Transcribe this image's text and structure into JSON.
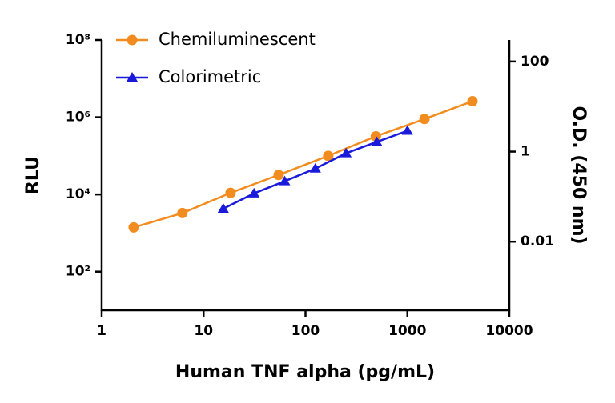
{
  "chart_data": {
    "type": "line",
    "x_label": "Human TNF alpha (pg/mL)",
    "y_label": "RLU",
    "y2_label": "O.D. (450 nm)",
    "xscale": "log",
    "yscale": "log",
    "y2scale": "log",
    "xlim": [
      1,
      10000
    ],
    "xticks": [
      1,
      10,
      100,
      1000,
      10000
    ],
    "ylim": [
      10,
      100000000
    ],
    "yticks": [
      {
        "value": 100,
        "label": "10²"
      },
      {
        "value": 10000,
        "label": "10⁴"
      },
      {
        "value": 1000000,
        "label": "10⁶"
      },
      {
        "value": 100000000,
        "label": "10⁸"
      }
    ],
    "y2lim": [
      0.0003,
      300
    ],
    "y2ticks": [
      0.01,
      1,
      100
    ],
    "legend": "top-left",
    "series": [
      {
        "name": "Chemiluminescent",
        "color": "#f28c1e",
        "marker": "circle",
        "x": [
          2.06,
          6.2,
          18.4,
          54.5,
          167,
          490,
          1470,
          4350
        ],
        "values": [
          1400,
          3300,
          11000,
          32000,
          100000,
          320000,
          900000,
          2600000
        ]
      },
      {
        "name": "Colorimetric",
        "color": "#1a1adb",
        "marker": "triangle",
        "axis": "y2",
        "x": [
          15.6,
          31.25,
          62.5,
          125,
          250,
          500,
          1000
        ],
        "values": [
          0.054,
          0.118,
          0.22,
          0.42,
          0.92,
          1.64,
          2.9
        ]
      }
    ]
  }
}
